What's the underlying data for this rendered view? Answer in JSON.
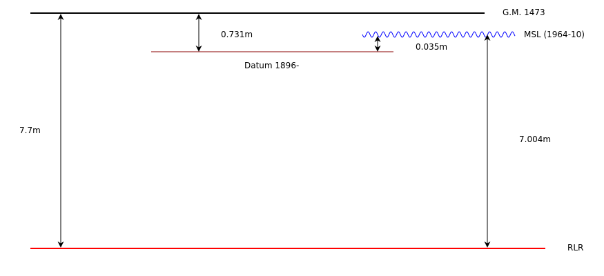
{
  "diagram": {
    "colors": {
      "gm_line": "#000000",
      "rlr_line": "#ff0000",
      "datum_line": "#8b0000",
      "msl_wave": "#0000ff",
      "arrows": "#000000"
    },
    "levels": {
      "gm": {
        "label": "G.M. 1473"
      },
      "msl": {
        "label": "MSL (1964-10)"
      },
      "datum": {
        "label": "Datum 1896-"
      },
      "rlr": {
        "label": "RLR"
      }
    },
    "measurements": {
      "gm_to_rlr": "7.7m",
      "gm_to_datum": "0.731m",
      "datum_to_msl": "0.035m",
      "msl_to_rlr": "7.004m"
    }
  }
}
